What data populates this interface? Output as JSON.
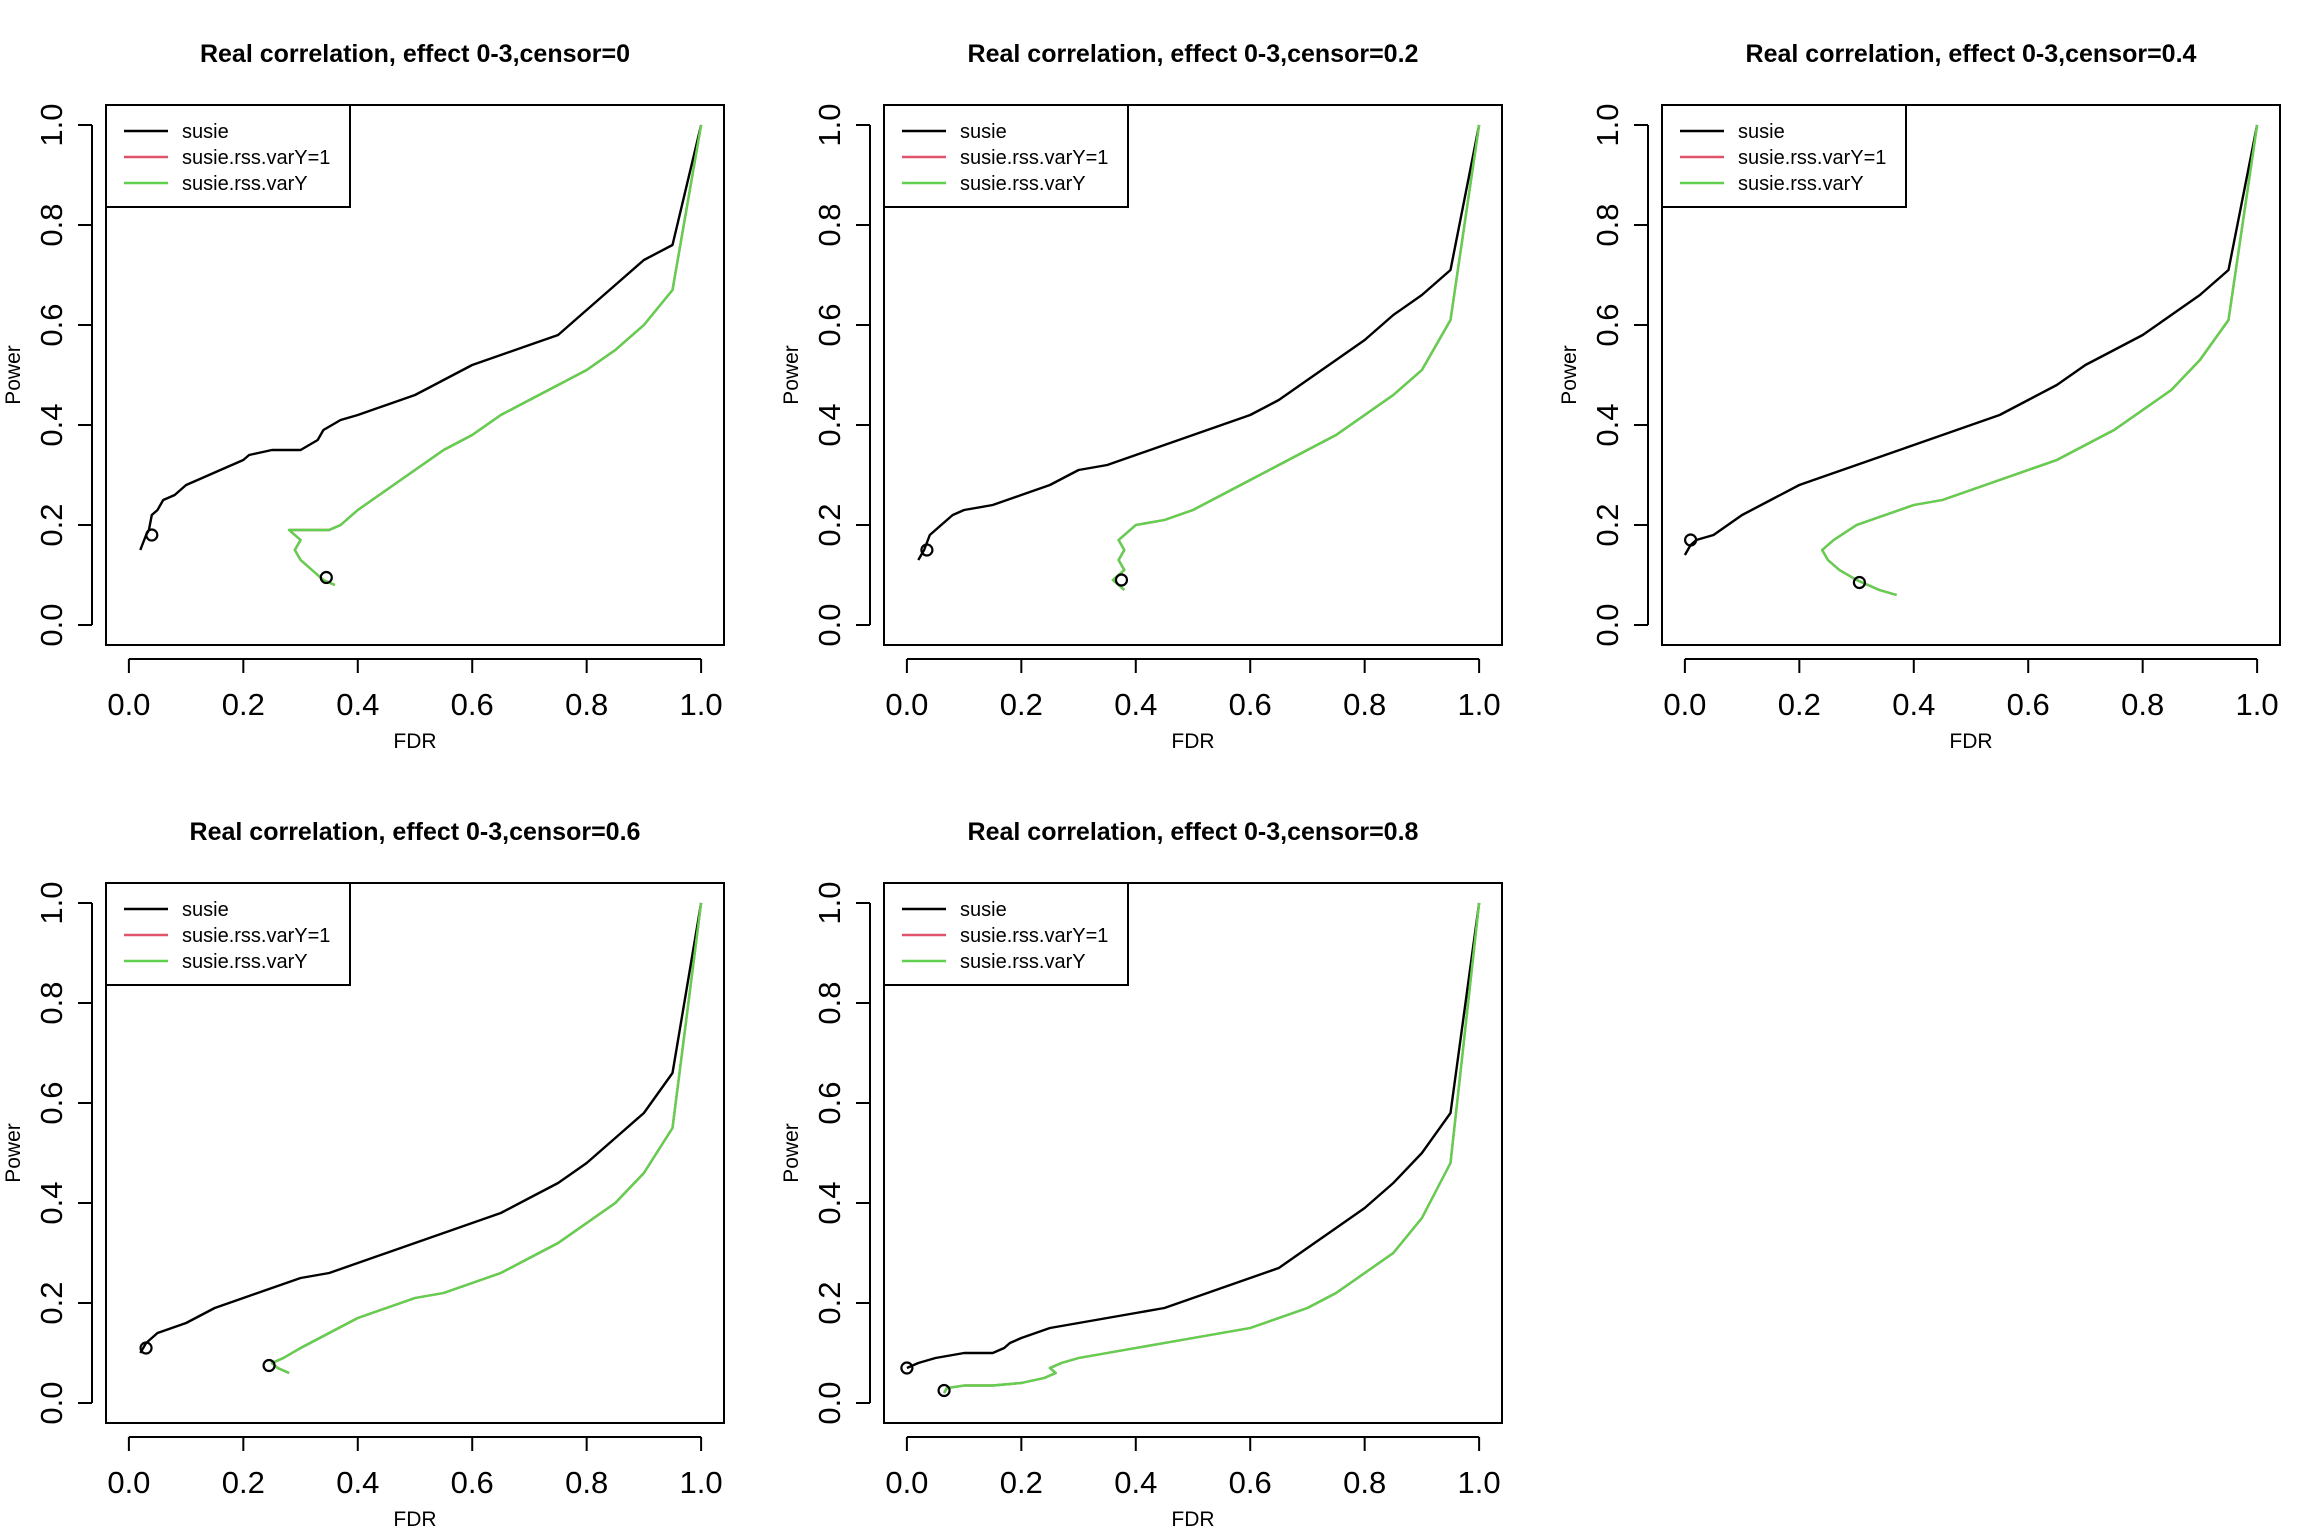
{
  "chart_data": [
    {
      "type": "line",
      "title": "Real correlation, effect 0-3,censor=0",
      "xlabel": "FDR",
      "ylabel": "Power",
      "xlim": [
        0,
        1
      ],
      "ylim": [
        0,
        1
      ],
      "xticks": [
        "0.0",
        "0.2",
        "0.4",
        "0.6",
        "0.8",
        "1.0"
      ],
      "yticks": [
        "0.0",
        "0.2",
        "0.4",
        "0.6",
        "0.8",
        "1.0"
      ],
      "grid": false,
      "legend_position": "top-left",
      "series": [
        {
          "name": "susie",
          "color": "#000000",
          "x": [
            0.02,
            0.03,
            0.035,
            0.04,
            0.05,
            0.06,
            0.08,
            0.1,
            0.12,
            0.16,
            0.2,
            0.21,
            0.25,
            0.3,
            0.33,
            0.34,
            0.37,
            0.4,
            0.45,
            0.5,
            0.55,
            0.6,
            0.65,
            0.7,
            0.75,
            0.78,
            0.82,
            0.86,
            0.9,
            0.95,
            1.0
          ],
          "y": [
            0.15,
            0.18,
            0.19,
            0.22,
            0.23,
            0.25,
            0.26,
            0.28,
            0.29,
            0.31,
            0.33,
            0.34,
            0.35,
            0.35,
            0.37,
            0.39,
            0.41,
            0.42,
            0.44,
            0.46,
            0.49,
            0.52,
            0.54,
            0.56,
            0.58,
            0.61,
            0.65,
            0.69,
            0.73,
            0.76,
            1.0
          ]
        },
        {
          "name": "susie.rss.varY=1",
          "color": "#df536b",
          "x": [
            0.36,
            0.34,
            0.32,
            0.3,
            0.29,
            0.3,
            0.28,
            0.3,
            0.35,
            0.37,
            0.4,
            0.45,
            0.5,
            0.55,
            0.6,
            0.65,
            0.7,
            0.75,
            0.8,
            0.85,
            0.9,
            0.95,
            1.0
          ],
          "y": [
            0.08,
            0.09,
            0.11,
            0.13,
            0.15,
            0.17,
            0.19,
            0.19,
            0.19,
            0.2,
            0.23,
            0.27,
            0.31,
            0.35,
            0.38,
            0.42,
            0.45,
            0.48,
            0.51,
            0.55,
            0.6,
            0.67,
            1.0
          ]
        },
        {
          "name": "susie.rss.varY",
          "color": "#61d04f",
          "x": [
            0.36,
            0.34,
            0.32,
            0.3,
            0.29,
            0.3,
            0.28,
            0.3,
            0.35,
            0.37,
            0.4,
            0.45,
            0.5,
            0.55,
            0.6,
            0.65,
            0.7,
            0.75,
            0.8,
            0.85,
            0.9,
            0.95,
            1.0
          ],
          "y": [
            0.08,
            0.09,
            0.11,
            0.13,
            0.15,
            0.17,
            0.19,
            0.19,
            0.19,
            0.2,
            0.23,
            0.27,
            0.31,
            0.35,
            0.38,
            0.42,
            0.45,
            0.48,
            0.51,
            0.55,
            0.6,
            0.67,
            1.0
          ]
        }
      ],
      "markers": [
        {
          "x": 0.04,
          "y": 0.18
        },
        {
          "x": 0.345,
          "y": 0.095
        }
      ]
    },
    {
      "type": "line",
      "title": "Real correlation, effect 0-3,censor=0.2",
      "xlabel": "FDR",
      "ylabel": "Power",
      "xlim": [
        0,
        1
      ],
      "ylim": [
        0,
        1
      ],
      "xticks": [
        "0.0",
        "0.2",
        "0.4",
        "0.6",
        "0.8",
        "1.0"
      ],
      "yticks": [
        "0.0",
        "0.2",
        "0.4",
        "0.6",
        "0.8",
        "1.0"
      ],
      "grid": false,
      "legend_position": "top-left",
      "series": [
        {
          "name": "susie",
          "color": "#000000",
          "x": [
            0.02,
            0.03,
            0.04,
            0.06,
            0.08,
            0.1,
            0.15,
            0.2,
            0.25,
            0.3,
            0.35,
            0.4,
            0.45,
            0.5,
            0.55,
            0.6,
            0.65,
            0.7,
            0.75,
            0.8,
            0.85,
            0.9,
            0.95,
            1.0
          ],
          "y": [
            0.13,
            0.15,
            0.18,
            0.2,
            0.22,
            0.23,
            0.24,
            0.26,
            0.28,
            0.31,
            0.32,
            0.34,
            0.36,
            0.38,
            0.4,
            0.42,
            0.45,
            0.49,
            0.53,
            0.57,
            0.62,
            0.66,
            0.71,
            1.0
          ]
        },
        {
          "name": "susie.rss.varY=1",
          "color": "#df536b",
          "x": [
            0.38,
            0.36,
            0.38,
            0.37,
            0.38,
            0.37,
            0.39,
            0.4,
            0.45,
            0.5,
            0.55,
            0.6,
            0.65,
            0.7,
            0.75,
            0.8,
            0.85,
            0.9,
            0.95,
            1.0
          ],
          "y": [
            0.07,
            0.09,
            0.11,
            0.13,
            0.15,
            0.17,
            0.19,
            0.2,
            0.21,
            0.23,
            0.26,
            0.29,
            0.32,
            0.35,
            0.38,
            0.42,
            0.46,
            0.51,
            0.61,
            1.0
          ]
        },
        {
          "name": "susie.rss.varY",
          "color": "#61d04f",
          "x": [
            0.38,
            0.36,
            0.38,
            0.37,
            0.38,
            0.37,
            0.39,
            0.4,
            0.45,
            0.5,
            0.55,
            0.6,
            0.65,
            0.7,
            0.75,
            0.8,
            0.85,
            0.9,
            0.95,
            1.0
          ],
          "y": [
            0.07,
            0.09,
            0.11,
            0.13,
            0.15,
            0.17,
            0.19,
            0.2,
            0.21,
            0.23,
            0.26,
            0.29,
            0.32,
            0.35,
            0.38,
            0.42,
            0.46,
            0.51,
            0.61,
            1.0
          ]
        }
      ],
      "markers": [
        {
          "x": 0.035,
          "y": 0.15
        },
        {
          "x": 0.375,
          "y": 0.09
        }
      ]
    },
    {
      "type": "line",
      "title": "Real correlation, effect 0-3,censor=0.4",
      "xlabel": "FDR",
      "ylabel": "Power",
      "xlim": [
        0,
        1
      ],
      "ylim": [
        0,
        1
      ],
      "xticks": [
        "0.0",
        "0.2",
        "0.4",
        "0.6",
        "0.8",
        "1.0"
      ],
      "yticks": [
        "0.0",
        "0.2",
        "0.4",
        "0.6",
        "0.8",
        "1.0"
      ],
      "grid": false,
      "legend_position": "top-left",
      "series": [
        {
          "name": "susie",
          "color": "#000000",
          "x": [
            0.0,
            0.01,
            0.02,
            0.05,
            0.1,
            0.15,
            0.2,
            0.25,
            0.3,
            0.35,
            0.4,
            0.45,
            0.5,
            0.55,
            0.6,
            0.65,
            0.7,
            0.75,
            0.8,
            0.85,
            0.9,
            0.95,
            1.0
          ],
          "y": [
            0.14,
            0.16,
            0.17,
            0.18,
            0.22,
            0.25,
            0.28,
            0.3,
            0.32,
            0.34,
            0.36,
            0.38,
            0.4,
            0.42,
            0.45,
            0.48,
            0.52,
            0.55,
            0.58,
            0.62,
            0.66,
            0.71,
            1.0
          ]
        },
        {
          "name": "susie.rss.varY=1",
          "color": "#df536b",
          "x": [
            0.37,
            0.34,
            0.3,
            0.27,
            0.25,
            0.24,
            0.25,
            0.26,
            0.3,
            0.35,
            0.4,
            0.45,
            0.5,
            0.55,
            0.6,
            0.65,
            0.7,
            0.75,
            0.8,
            0.85,
            0.9,
            0.95,
            1.0
          ],
          "y": [
            0.06,
            0.07,
            0.09,
            0.11,
            0.13,
            0.15,
            0.16,
            0.17,
            0.2,
            0.22,
            0.24,
            0.25,
            0.27,
            0.29,
            0.31,
            0.33,
            0.36,
            0.39,
            0.43,
            0.47,
            0.53,
            0.61,
            1.0
          ]
        },
        {
          "name": "susie.rss.varY",
          "color": "#61d04f",
          "x": [
            0.37,
            0.34,
            0.3,
            0.27,
            0.25,
            0.24,
            0.25,
            0.26,
            0.3,
            0.35,
            0.4,
            0.45,
            0.5,
            0.55,
            0.6,
            0.65,
            0.7,
            0.75,
            0.8,
            0.85,
            0.9,
            0.95,
            1.0
          ],
          "y": [
            0.06,
            0.07,
            0.09,
            0.11,
            0.13,
            0.15,
            0.16,
            0.17,
            0.2,
            0.22,
            0.24,
            0.25,
            0.27,
            0.29,
            0.31,
            0.33,
            0.36,
            0.39,
            0.43,
            0.47,
            0.53,
            0.61,
            1.0
          ]
        }
      ],
      "markers": [
        {
          "x": 0.01,
          "y": 0.17
        },
        {
          "x": 0.305,
          "y": 0.085
        }
      ]
    },
    {
      "type": "line",
      "title": "Real correlation, effect 0-3,censor=0.6",
      "xlabel": "FDR",
      "ylabel": "Power",
      "xlim": [
        0,
        1
      ],
      "ylim": [
        0,
        1
      ],
      "xticks": [
        "0.0",
        "0.2",
        "0.4",
        "0.6",
        "0.8",
        "1.0"
      ],
      "yticks": [
        "0.0",
        "0.2",
        "0.4",
        "0.6",
        "0.8",
        "1.0"
      ],
      "grid": false,
      "legend_position": "top-left",
      "series": [
        {
          "name": "susie",
          "color": "#000000",
          "x": [
            0.02,
            0.03,
            0.05,
            0.1,
            0.15,
            0.2,
            0.25,
            0.3,
            0.35,
            0.4,
            0.45,
            0.5,
            0.55,
            0.6,
            0.65,
            0.7,
            0.75,
            0.8,
            0.85,
            0.9,
            0.95,
            1.0
          ],
          "y": [
            0.1,
            0.12,
            0.14,
            0.16,
            0.19,
            0.21,
            0.23,
            0.25,
            0.26,
            0.28,
            0.3,
            0.32,
            0.34,
            0.36,
            0.38,
            0.41,
            0.44,
            0.48,
            0.53,
            0.58,
            0.66,
            1.0
          ]
        },
        {
          "name": "susie.rss.varY=1",
          "color": "#df536b",
          "x": [
            0.28,
            0.26,
            0.25,
            0.27,
            0.3,
            0.35,
            0.4,
            0.45,
            0.5,
            0.55,
            0.6,
            0.65,
            0.7,
            0.75,
            0.8,
            0.85,
            0.9,
            0.95,
            1.0
          ],
          "y": [
            0.06,
            0.07,
            0.08,
            0.09,
            0.11,
            0.14,
            0.17,
            0.19,
            0.21,
            0.22,
            0.24,
            0.26,
            0.29,
            0.32,
            0.36,
            0.4,
            0.46,
            0.55,
            1.0
          ]
        },
        {
          "name": "susie.rss.varY",
          "color": "#61d04f",
          "x": [
            0.28,
            0.26,
            0.25,
            0.27,
            0.3,
            0.35,
            0.4,
            0.45,
            0.5,
            0.55,
            0.6,
            0.65,
            0.7,
            0.75,
            0.8,
            0.85,
            0.9,
            0.95,
            1.0
          ],
          "y": [
            0.06,
            0.07,
            0.08,
            0.09,
            0.11,
            0.14,
            0.17,
            0.19,
            0.21,
            0.22,
            0.24,
            0.26,
            0.29,
            0.32,
            0.36,
            0.4,
            0.46,
            0.55,
            1.0
          ]
        }
      ],
      "markers": [
        {
          "x": 0.03,
          "y": 0.11
        },
        {
          "x": 0.245,
          "y": 0.075
        }
      ]
    },
    {
      "type": "line",
      "title": "Real correlation, effect 0-3,censor=0.8",
      "xlabel": "FDR",
      "ylabel": "Power",
      "xlim": [
        0,
        1
      ],
      "ylim": [
        0,
        1
      ],
      "xticks": [
        "0.0",
        "0.2",
        "0.4",
        "0.6",
        "0.8",
        "1.0"
      ],
      "yticks": [
        "0.0",
        "0.2",
        "0.4",
        "0.6",
        "0.8",
        "1.0"
      ],
      "grid": false,
      "legend_position": "top-left",
      "series": [
        {
          "name": "susie",
          "color": "#000000",
          "x": [
            0.0,
            0.02,
            0.05,
            0.1,
            0.15,
            0.17,
            0.18,
            0.2,
            0.25,
            0.3,
            0.35,
            0.4,
            0.45,
            0.5,
            0.55,
            0.6,
            0.65,
            0.7,
            0.75,
            0.8,
            0.85,
            0.9,
            0.95,
            1.0
          ],
          "y": [
            0.07,
            0.08,
            0.09,
            0.1,
            0.1,
            0.11,
            0.12,
            0.13,
            0.15,
            0.16,
            0.17,
            0.18,
            0.19,
            0.21,
            0.23,
            0.25,
            0.27,
            0.31,
            0.35,
            0.39,
            0.44,
            0.5,
            0.58,
            1.0
          ]
        },
        {
          "name": "susie.rss.varY=1",
          "color": "#df536b",
          "x": [
            0.065,
            0.07,
            0.1,
            0.15,
            0.2,
            0.24,
            0.26,
            0.25,
            0.27,
            0.3,
            0.35,
            0.4,
            0.45,
            0.5,
            0.55,
            0.6,
            0.65,
            0.7,
            0.75,
            0.8,
            0.85,
            0.9,
            0.95,
            1.0
          ],
          "y": [
            0.02,
            0.03,
            0.035,
            0.035,
            0.04,
            0.05,
            0.06,
            0.07,
            0.08,
            0.09,
            0.1,
            0.11,
            0.12,
            0.13,
            0.14,
            0.15,
            0.17,
            0.19,
            0.22,
            0.26,
            0.3,
            0.37,
            0.48,
            1.0
          ]
        },
        {
          "name": "susie.rss.varY",
          "color": "#61d04f",
          "x": [
            0.065,
            0.07,
            0.1,
            0.15,
            0.2,
            0.24,
            0.26,
            0.25,
            0.27,
            0.3,
            0.35,
            0.4,
            0.45,
            0.5,
            0.55,
            0.6,
            0.65,
            0.7,
            0.75,
            0.8,
            0.85,
            0.9,
            0.95,
            1.0
          ],
          "y": [
            0.02,
            0.03,
            0.035,
            0.035,
            0.04,
            0.05,
            0.06,
            0.07,
            0.08,
            0.09,
            0.1,
            0.11,
            0.12,
            0.13,
            0.14,
            0.15,
            0.17,
            0.19,
            0.22,
            0.26,
            0.3,
            0.37,
            0.48,
            1.0
          ]
        }
      ],
      "markers": [
        {
          "x": 0.0,
          "y": 0.07
        },
        {
          "x": 0.065,
          "y": 0.025
        }
      ]
    }
  ]
}
